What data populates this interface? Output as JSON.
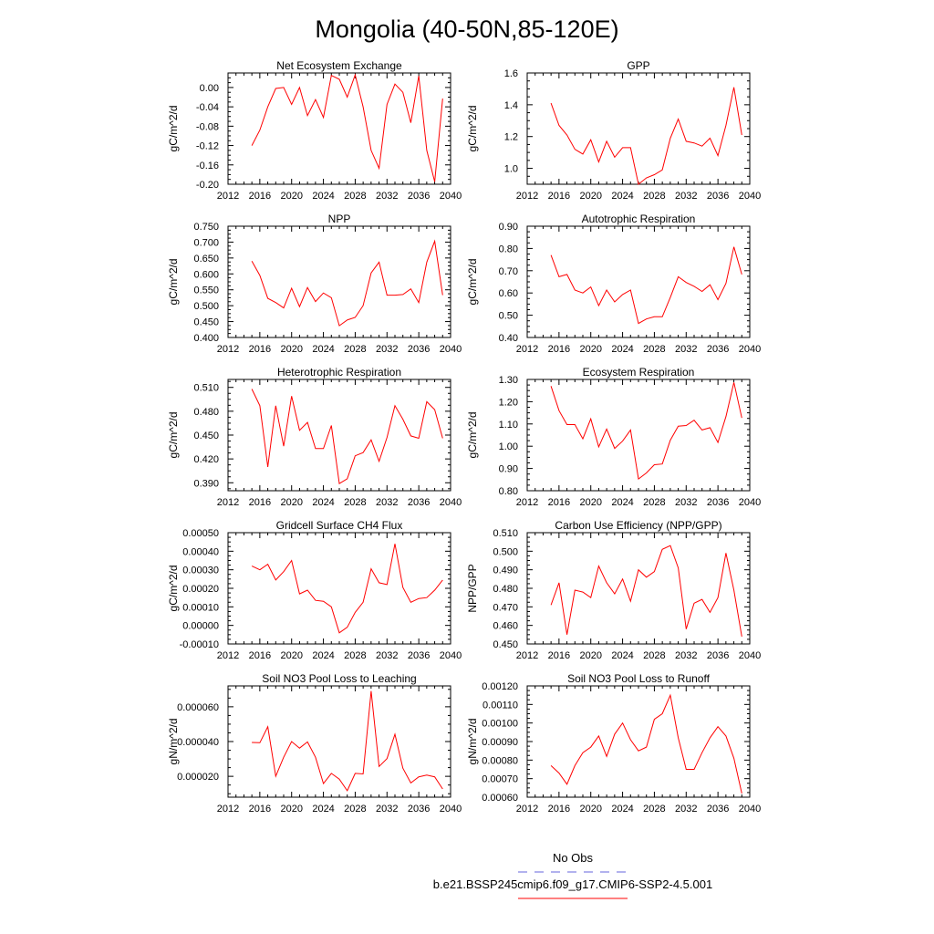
{
  "figure": {
    "title": "Mongolia (40-50N,85-120E)"
  },
  "legend": {
    "obs_label": "No Obs",
    "model_label": "b.e21.BSSP245cmip6.f09_g17.CMIP6-SSP2-4.5.001",
    "obs_color": "#6666dd",
    "model_color": "#ff0000"
  },
  "chart_data": [
    {
      "type": "line",
      "title": "Net Ecosystem Exchange",
      "ylabel": "gC/m^2/d",
      "xlim": [
        2012,
        2040
      ],
      "xticks": [
        2012,
        2016,
        2020,
        2024,
        2028,
        2032,
        2036,
        2040
      ],
      "ylim": [
        -0.2,
        0.03
      ],
      "yticks": [
        -0.2,
        -0.16,
        -0.12,
        -0.08,
        -0.04,
        0.0
      ],
      "ytick_labels": [
        "-0.20",
        "-0.16",
        "-0.12",
        "-0.08",
        "-0.04",
        "0.00"
      ],
      "x": [
        2015,
        2016,
        2017,
        2018,
        2019,
        2020,
        2021,
        2022,
        2023,
        2024,
        2025,
        2026,
        2027,
        2028,
        2029,
        2030,
        2031,
        2032,
        2033,
        2034,
        2035,
        2036,
        2037,
        2038,
        2039
      ],
      "series": [
        {
          "values": [
            -0.12,
            -0.088,
            -0.04,
            -0.002,
            0.0,
            -0.035,
            0.0,
            -0.058,
            -0.025,
            -0.062,
            0.025,
            0.017,
            -0.02,
            0.026,
            -0.04,
            -0.13,
            -0.167,
            -0.035,
            0.007,
            -0.01,
            -0.073,
            0.024,
            -0.13,
            -0.195,
            -0.023
          ],
          "color": "#ff0000"
        }
      ]
    },
    {
      "type": "line",
      "title": "GPP",
      "ylabel": "gC/m^2/d",
      "xlim": [
        2012,
        2040
      ],
      "xticks": [
        2012,
        2016,
        2020,
        2024,
        2028,
        2032,
        2036,
        2040
      ],
      "ylim": [
        0.9,
        1.6
      ],
      "yticks": [
        1.0,
        1.2,
        1.4,
        1.6
      ],
      "ytick_labels": [
        "1.0",
        "1.2",
        "1.4",
        "1.6"
      ],
      "x": [
        2015,
        2016,
        2017,
        2018,
        2019,
        2020,
        2021,
        2022,
        2023,
        2024,
        2025,
        2026,
        2027,
        2028,
        2029,
        2030,
        2031,
        2032,
        2033,
        2034,
        2035,
        2036,
        2037,
        2038,
        2039
      ],
      "series": [
        {
          "values": [
            1.41,
            1.27,
            1.21,
            1.12,
            1.09,
            1.18,
            1.04,
            1.17,
            1.07,
            1.13,
            1.13,
            0.9,
            0.94,
            0.96,
            0.99,
            1.19,
            1.31,
            1.17,
            1.16,
            1.14,
            1.19,
            1.08,
            1.27,
            1.51,
            1.21
          ],
          "color": "#ff0000"
        }
      ]
    },
    {
      "type": "line",
      "title": "NPP",
      "ylabel": "gC/m^2/d",
      "xlim": [
        2012,
        2040
      ],
      "xticks": [
        2012,
        2016,
        2020,
        2024,
        2028,
        2032,
        2036,
        2040
      ],
      "ylim": [
        0.4,
        0.75
      ],
      "yticks": [
        0.4,
        0.45,
        0.5,
        0.55,
        0.6,
        0.65,
        0.7,
        0.75
      ],
      "ytick_labels": [
        "0.400",
        "0.450",
        "0.500",
        "0.550",
        "0.600",
        "0.650",
        "0.700",
        "0.750"
      ],
      "x": [
        2015,
        2016,
        2017,
        2018,
        2019,
        2020,
        2021,
        2022,
        2023,
        2024,
        2025,
        2026,
        2027,
        2028,
        2029,
        2030,
        2031,
        2032,
        2033,
        2034,
        2035,
        2036,
        2037,
        2038,
        2039
      ],
      "series": [
        {
          "values": [
            0.64,
            0.595,
            0.523,
            0.51,
            0.493,
            0.555,
            0.497,
            0.557,
            0.513,
            0.54,
            0.525,
            0.437,
            0.455,
            0.463,
            0.5,
            0.603,
            0.637,
            0.533,
            0.533,
            0.535,
            0.553,
            0.51,
            0.637,
            0.703,
            0.533
          ],
          "color": "#ff0000"
        }
      ]
    },
    {
      "type": "line",
      "title": "Autotrophic Respiration",
      "ylabel": "gC/m^2/d",
      "xlim": [
        2012,
        2040
      ],
      "xticks": [
        2012,
        2016,
        2020,
        2024,
        2028,
        2032,
        2036,
        2040
      ],
      "ylim": [
        0.4,
        0.9
      ],
      "yticks": [
        0.4,
        0.5,
        0.6,
        0.7,
        0.8,
        0.9
      ],
      "ytick_labels": [
        "0.40",
        "0.50",
        "0.60",
        "0.70",
        "0.80",
        "0.90"
      ],
      "x": [
        2015,
        2016,
        2017,
        2018,
        2019,
        2020,
        2021,
        2022,
        2023,
        2024,
        2025,
        2026,
        2027,
        2028,
        2029,
        2030,
        2031,
        2032,
        2033,
        2034,
        2035,
        2036,
        2037,
        2038,
        2039
      ],
      "series": [
        {
          "values": [
            0.77,
            0.673,
            0.683,
            0.613,
            0.6,
            0.627,
            0.543,
            0.613,
            0.56,
            0.593,
            0.613,
            0.463,
            0.483,
            0.493,
            0.493,
            0.58,
            0.673,
            0.647,
            0.63,
            0.607,
            0.637,
            0.57,
            0.643,
            0.807,
            0.683
          ],
          "color": "#ff0000"
        }
      ]
    },
    {
      "type": "line",
      "title": "Heterotrophic Respiration",
      "ylabel": "gC/m^2/d",
      "xlim": [
        2012,
        2040
      ],
      "xticks": [
        2012,
        2016,
        2020,
        2024,
        2028,
        2032,
        2036,
        2040
      ],
      "ylim": [
        0.38,
        0.52
      ],
      "yticks": [
        0.39,
        0.42,
        0.45,
        0.48,
        0.51
      ],
      "ytick_labels": [
        "0.390",
        "0.420",
        "0.450",
        "0.480",
        "0.510"
      ],
      "x": [
        2015,
        2016,
        2017,
        2018,
        2019,
        2020,
        2021,
        2022,
        2023,
        2024,
        2025,
        2026,
        2027,
        2028,
        2029,
        2030,
        2031,
        2032,
        2033,
        2034,
        2035,
        2036,
        2037,
        2038,
        2039
      ],
      "series": [
        {
          "values": [
            0.508,
            0.487,
            0.41,
            0.487,
            0.436,
            0.499,
            0.456,
            0.466,
            0.433,
            0.433,
            0.462,
            0.389,
            0.395,
            0.424,
            0.428,
            0.444,
            0.417,
            0.447,
            0.487,
            0.47,
            0.449,
            0.446,
            0.492,
            0.482,
            0.446
          ],
          "color": "#ff0000"
        }
      ]
    },
    {
      "type": "line",
      "title": "Ecosystem Respiration",
      "ylabel": "gC/m^2/d",
      "xlim": [
        2012,
        2040
      ],
      "xticks": [
        2012,
        2016,
        2020,
        2024,
        2028,
        2032,
        2036,
        2040
      ],
      "ylim": [
        0.8,
        1.3
      ],
      "yticks": [
        0.8,
        0.9,
        1.0,
        1.1,
        1.2,
        1.3
      ],
      "ytick_labels": [
        "0.80",
        "0.90",
        "1.00",
        "1.10",
        "1.20",
        "1.30"
      ],
      "x": [
        2015,
        2016,
        2017,
        2018,
        2019,
        2020,
        2021,
        2022,
        2023,
        2024,
        2025,
        2026,
        2027,
        2028,
        2029,
        2030,
        2031,
        2032,
        2033,
        2034,
        2035,
        2036,
        2037,
        2038,
        2039
      ],
      "series": [
        {
          "values": [
            1.27,
            1.16,
            1.097,
            1.097,
            1.033,
            1.123,
            0.997,
            1.077,
            0.99,
            1.023,
            1.073,
            0.853,
            0.88,
            0.917,
            0.92,
            1.027,
            1.09,
            1.093,
            1.117,
            1.073,
            1.083,
            1.017,
            1.133,
            1.287,
            1.127
          ],
          "color": "#ff0000"
        }
      ]
    },
    {
      "type": "line",
      "title": "Gridcell Surface CH4 Flux",
      "ylabel": "gC/m^2/d",
      "xlim": [
        2012,
        2040
      ],
      "xticks": [
        2012,
        2016,
        2020,
        2024,
        2028,
        2032,
        2036,
        2040
      ],
      "ylim": [
        -0.0001,
        0.0005
      ],
      "yticks": [
        -0.0001,
        0.0,
        0.0001,
        0.0002,
        0.0003,
        0.0004,
        0.0005
      ],
      "ytick_labels": [
        "-0.00010",
        "0.00000",
        "0.00010",
        "0.00020",
        "0.00030",
        "0.00040",
        "0.00050"
      ],
      "x": [
        2015,
        2016,
        2017,
        2018,
        2019,
        2020,
        2021,
        2022,
        2023,
        2024,
        2025,
        2026,
        2027,
        2028,
        2029,
        2030,
        2031,
        2032,
        2033,
        2034,
        2035,
        2036,
        2037,
        2038,
        2039
      ],
      "series": [
        {
          "values": [
            0.00032,
            0.0003,
            0.00033,
            0.000245,
            0.00029,
            0.00035,
            0.00017,
            0.00019,
            0.000135,
            0.00013,
            0.0001,
            -4e-05,
            -1e-05,
            7e-05,
            0.000125,
            0.000305,
            0.00023,
            0.00022,
            0.00044,
            0.000205,
            0.000125,
            0.000145,
            0.00015,
            0.00019,
            0.000245
          ],
          "color": "#ff0000"
        }
      ]
    },
    {
      "type": "line",
      "title": "Carbon Use Efficiency (NPP/GPP)",
      "ylabel": "NPP/GPP",
      "xlim": [
        2012,
        2040
      ],
      "xticks": [
        2012,
        2016,
        2020,
        2024,
        2028,
        2032,
        2036,
        2040
      ],
      "ylim": [
        0.45,
        0.51
      ],
      "yticks": [
        0.45,
        0.46,
        0.47,
        0.48,
        0.49,
        0.5,
        0.51
      ],
      "ytick_labels": [
        "0.450",
        "0.460",
        "0.470",
        "0.480",
        "0.490",
        "0.500",
        "0.510"
      ],
      "x": [
        2015,
        2016,
        2017,
        2018,
        2019,
        2020,
        2021,
        2022,
        2023,
        2024,
        2025,
        2026,
        2027,
        2028,
        2029,
        2030,
        2031,
        2032,
        2033,
        2034,
        2035,
        2036,
        2037,
        2038,
        2039
      ],
      "series": [
        {
          "values": [
            0.471,
            0.483,
            0.455,
            0.479,
            0.478,
            0.475,
            0.492,
            0.483,
            0.477,
            0.485,
            0.473,
            0.49,
            0.486,
            0.489,
            0.501,
            0.503,
            0.491,
            0.458,
            0.472,
            0.474,
            0.467,
            0.475,
            0.499,
            0.479,
            0.454
          ],
          "color": "#ff0000"
        }
      ]
    },
    {
      "type": "line",
      "title": "Soil NO3 Pool Loss to Leaching",
      "ylabel": "gN/m^2/d",
      "xlim": [
        2012,
        2040
      ],
      "xticks": [
        2012,
        2016,
        2020,
        2024,
        2028,
        2032,
        2036,
        2040
      ],
      "ylim": [
        8e-06,
        7.2e-05
      ],
      "yticks": [
        2e-05,
        4e-05,
        6e-05
      ],
      "ytick_labels": [
        "0.000020",
        "0.000040",
        "0.000060"
      ],
      "x": [
        2015,
        2016,
        2017,
        2018,
        2019,
        2020,
        2021,
        2022,
        2023,
        2024,
        2025,
        2026,
        2027,
        2028,
        2029,
        2030,
        2031,
        2032,
        2033,
        2034,
        2035,
        2036,
        2037,
        2038,
        2039
      ],
      "series": [
        {
          "values": [
            3.95e-05,
            3.93e-05,
            4.85e-05,
            2e-05,
            3.1e-05,
            4e-05,
            3.62e-05,
            3.98e-05,
            3.1e-05,
            1.58e-05,
            2.17e-05,
            1.84e-05,
            1.17e-05,
            2.17e-05,
            2.14e-05,
            6.9e-05,
            2.57e-05,
            3.02e-05,
            4.42e-05,
            2.47e-05,
            1.62e-05,
            1.97e-05,
            2.07e-05,
            1.97e-05,
            1.27e-05
          ],
          "color": "#ff0000"
        }
      ]
    },
    {
      "type": "line",
      "title": "Soil NO3 Pool Loss to Runoff",
      "ylabel": "gN/m^2/d",
      "xlim": [
        2012,
        2040
      ],
      "xticks": [
        2012,
        2016,
        2020,
        2024,
        2028,
        2032,
        2036,
        2040
      ],
      "ylim": [
        0.0006,
        0.0012
      ],
      "yticks": [
        0.0006,
        0.0007,
        0.0008,
        0.0009,
        0.001,
        0.0011,
        0.0012
      ],
      "ytick_labels": [
        "0.00060",
        "0.00070",
        "0.00080",
        "0.00090",
        "0.00100",
        "0.00110",
        "0.00120"
      ],
      "x": [
        2015,
        2016,
        2017,
        2018,
        2019,
        2020,
        2021,
        2022,
        2023,
        2024,
        2025,
        2026,
        2027,
        2028,
        2029,
        2030,
        2031,
        2032,
        2033,
        2034,
        2035,
        2036,
        2037,
        2038,
        2039
      ],
      "series": [
        {
          "values": [
            0.00077,
            0.00073,
            0.00067,
            0.00077,
            0.00084,
            0.00087,
            0.00093,
            0.00082,
            0.00094,
            0.001,
            0.00091,
            0.00085,
            0.00087,
            0.00102,
            0.00105,
            0.00115,
            0.00092,
            0.00075,
            0.00075,
            0.00084,
            0.00092,
            0.00098,
            0.00093,
            0.00081,
            0.00062
          ],
          "color": "#ff0000"
        }
      ]
    }
  ]
}
